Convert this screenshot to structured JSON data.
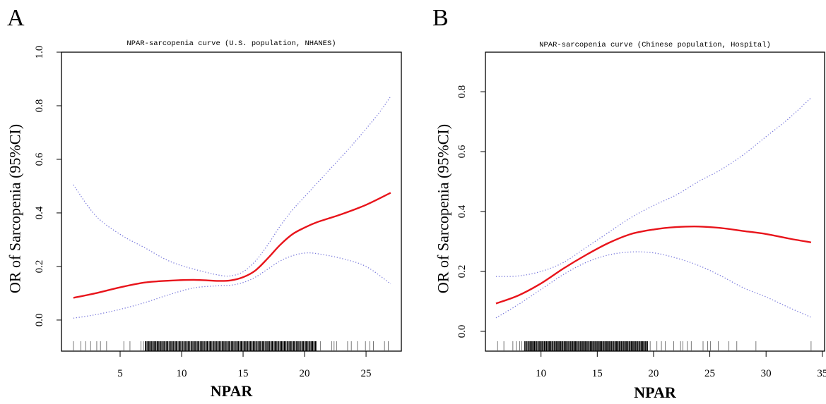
{
  "chart_data": [
    {
      "type": "line",
      "panel_label": "A",
      "title": "NPAR-sarcopenia curve (U.S. population, NHANES)",
      "xlabel": "NPAR",
      "ylabel": "OR of Sarcopenia (95%CI)",
      "xlim": [
        0.23,
        27.87
      ],
      "ylim": [
        -0.116,
        1.0
      ],
      "xticks": [
        5,
        10,
        15,
        20,
        25
      ],
      "yticks": [
        0.0,
        0.2,
        0.4,
        0.6,
        0.8,
        1.0
      ],
      "ytick_labels": [
        "0.0",
        "0.2",
        "0.4",
        "0.6",
        "0.8",
        "1.0"
      ],
      "grid": false,
      "series": [
        {
          "name": "OR estimate",
          "style": "solid",
          "color": "#e8141b",
          "x": [
            1.2,
            3,
            5,
            7,
            9,
            11,
            13,
            14,
            15,
            16,
            17,
            18,
            19,
            20,
            21,
            23,
            25,
            27
          ],
          "y": [
            0.083,
            0.1,
            0.122,
            0.14,
            0.147,
            0.15,
            0.146,
            0.148,
            0.16,
            0.185,
            0.23,
            0.28,
            0.32,
            0.345,
            0.365,
            0.395,
            0.43,
            0.475
          ]
        },
        {
          "name": "Upper 95% CI",
          "style": "dotted",
          "color": "#7b7bdc",
          "x": [
            1.2,
            3,
            5,
            7,
            9,
            11,
            13,
            14,
            15,
            16,
            17,
            18,
            19,
            20,
            22,
            24,
            26,
            27
          ],
          "y": [
            0.505,
            0.39,
            0.32,
            0.27,
            0.22,
            0.19,
            0.168,
            0.165,
            0.18,
            0.22,
            0.28,
            0.35,
            0.41,
            0.46,
            0.56,
            0.66,
            0.77,
            0.835
          ]
        },
        {
          "name": "Lower 95% CI",
          "style": "dotted",
          "color": "#7b7bdc",
          "x": [
            1.2,
            3,
            5,
            7,
            9,
            11,
            13,
            14,
            15,
            16,
            17,
            18,
            19,
            20,
            21,
            23,
            25,
            27
          ],
          "y": [
            0.007,
            0.02,
            0.04,
            0.065,
            0.095,
            0.12,
            0.128,
            0.13,
            0.14,
            0.16,
            0.19,
            0.22,
            0.24,
            0.25,
            0.248,
            0.23,
            0.2,
            0.135
          ]
        }
      ],
      "rug_sparse": [
        1.2,
        1.8,
        2.2,
        2.6,
        3.1,
        3.4,
        3.9,
        5.3,
        5.8,
        6.7,
        6.9,
        7.2,
        7.5,
        7.9,
        8.2,
        20.6,
        20.9,
        21.3,
        22.2,
        22.4,
        22.6,
        23.5,
        23.8,
        24.3,
        24.95,
        25.3,
        25.6,
        26.5,
        26.8
      ],
      "rug_dense": [
        7.0,
        21.0
      ]
    },
    {
      "type": "line",
      "panel_label": "B",
      "title": "NPAR-sarcopenia curve (Chinese population, Hospital)",
      "xlabel": "NPAR",
      "ylabel": "OR of Sarcopenia (95%CI)",
      "xlim": [
        5.06,
        35.2
      ],
      "ylim": [
        -0.066,
        0.932
      ],
      "xticks": [
        10,
        15,
        20,
        25,
        30,
        35
      ],
      "yticks": [
        0.0,
        0.2,
        0.4,
        0.6,
        0.8
      ],
      "ytick_labels": [
        "0.0",
        "0.2",
        "0.4",
        "0.6",
        "0.8"
      ],
      "grid": false,
      "series": [
        {
          "name": "OR estimate",
          "style": "solid",
          "color": "#e8141b",
          "x": [
            6,
            8,
            10,
            12,
            14,
            16,
            18,
            20,
            22,
            24,
            26,
            28,
            30,
            32,
            34
          ],
          "y": [
            0.093,
            0.12,
            0.16,
            0.21,
            0.255,
            0.295,
            0.325,
            0.34,
            0.348,
            0.35,
            0.345,
            0.335,
            0.325,
            0.31,
            0.297
          ]
        },
        {
          "name": "Upper 95% CI",
          "style": "dotted",
          "color": "#7b7bdc",
          "x": [
            6,
            8,
            10,
            12,
            14,
            16,
            18,
            20,
            22,
            24,
            26,
            28,
            30,
            32,
            34
          ],
          "y": [
            0.183,
            0.185,
            0.2,
            0.23,
            0.28,
            0.33,
            0.38,
            0.42,
            0.455,
            0.5,
            0.54,
            0.59,
            0.65,
            0.71,
            0.78
          ]
        },
        {
          "name": "Lower 95% CI",
          "style": "dotted",
          "color": "#7b7bdc",
          "x": [
            6,
            8,
            10,
            12,
            14,
            16,
            18,
            20,
            22,
            24,
            26,
            28,
            30,
            32,
            34
          ],
          "y": [
            0.045,
            0.09,
            0.14,
            0.19,
            0.23,
            0.255,
            0.265,
            0.262,
            0.245,
            0.22,
            0.185,
            0.145,
            0.115,
            0.08,
            0.047
          ]
        }
      ],
      "rug_sparse": [
        6.14,
        6.7,
        7.5,
        7.8,
        8.1,
        8.3,
        19.7,
        20.3,
        20.7,
        21.05,
        21.8,
        22.4,
        22.6,
        23.0,
        23.35,
        24.4,
        24.8,
        25.05,
        25.75,
        26.7,
        27.4,
        29.1,
        34.0
      ],
      "rug_dense": [
        8.5,
        19.5
      ]
    }
  ]
}
